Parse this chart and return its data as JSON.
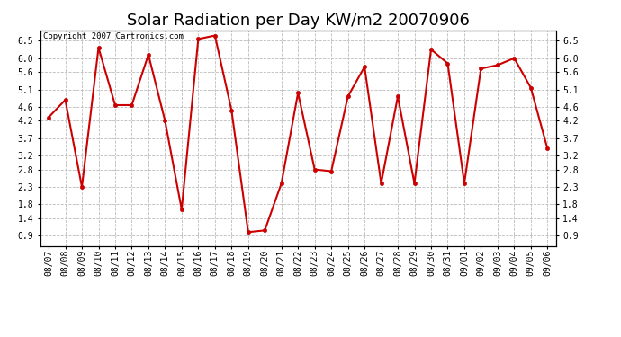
{
  "title": "Solar Radiation per Day KW/m2 20070906",
  "copyright_text": "Copyright 2007 Cartronics.com",
  "x_labels": [
    "08/07",
    "08/08",
    "08/09",
    "08/10",
    "08/11",
    "08/12",
    "08/13",
    "08/14",
    "08/15",
    "08/16",
    "08/17",
    "08/18",
    "08/19",
    "08/20",
    "08/21",
    "08/22",
    "08/23",
    "08/24",
    "08/25",
    "08/26",
    "08/27",
    "08/28",
    "08/29",
    "08/30",
    "08/31",
    "09/01",
    "09/02",
    "09/03",
    "09/04",
    "09/05",
    "09/06"
  ],
  "y_values": [
    4.3,
    4.8,
    2.3,
    6.3,
    4.65,
    4.65,
    6.1,
    4.2,
    1.65,
    6.55,
    6.65,
    4.5,
    1.0,
    1.05,
    2.4,
    5.0,
    2.8,
    2.75,
    4.9,
    5.75,
    2.4,
    4.9,
    2.4,
    6.25,
    5.85,
    2.4,
    5.7,
    5.8,
    6.0,
    5.15,
    3.4
  ],
  "line_color": "#cc0000",
  "marker_size": 3,
  "line_width": 1.5,
  "ylim": [
    0.6,
    6.8
  ],
  "yticks": [
    0.9,
    1.4,
    1.8,
    2.3,
    2.8,
    3.2,
    3.7,
    4.2,
    4.6,
    5.1,
    5.6,
    6.0,
    6.5
  ],
  "background_color": "#ffffff",
  "grid_color": "#bbbbbb",
  "title_fontsize": 13,
  "tick_fontsize": 7,
  "copyright_fontsize": 6.5
}
